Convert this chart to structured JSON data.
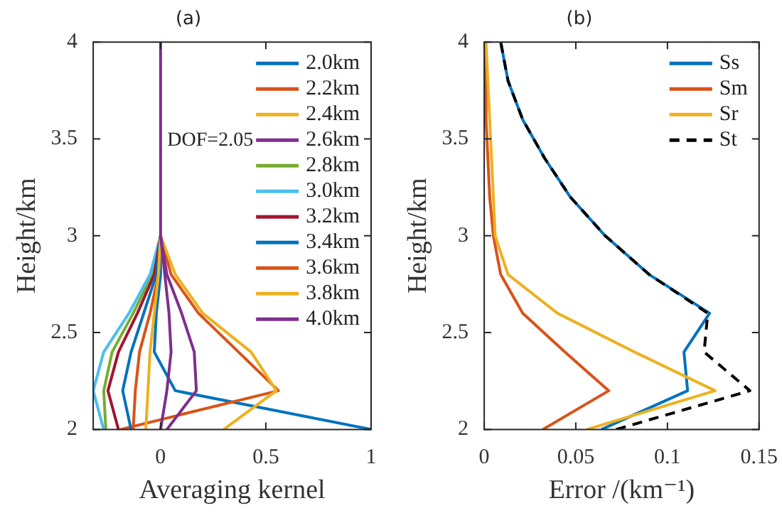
{
  "chart_data": [
    {
      "type": "line",
      "title": "(a)",
      "xlabel": "Averaging kernel",
      "ylabel": "Height/km",
      "xlim": [
        -0.32,
        1
      ],
      "xticks": [
        0,
        0.5,
        1
      ],
      "ylim": [
        2,
        4
      ],
      "yticks": [
        2,
        2.5,
        3,
        3.5,
        4
      ],
      "legend": "top right",
      "annotations": [
        "DOF=2.05"
      ],
      "series": [
        {
          "name": "2.0km",
          "color": "#0072bd",
          "x": [
            1,
            0.07,
            -0.03,
            -0.02,
            0,
            0
          ],
          "values": [
            2,
            2.2,
            2.4,
            2.6,
            2.8,
            3
          ]
        },
        {
          "name": "2.2km",
          "color": "#d95319",
          "x": [
            -0.19,
            0.56,
            0.37,
            0.18,
            0.05,
            0
          ],
          "values": [
            2,
            2.2,
            2.4,
            2.6,
            2.8,
            3
          ]
        },
        {
          "name": "2.4km",
          "color": "#edb120",
          "x": [
            0.3,
            0.55,
            0.43,
            0.2,
            0.07,
            0
          ],
          "values": [
            2,
            2.2,
            2.4,
            2.6,
            2.8,
            3
          ]
        },
        {
          "name": "2.6km",
          "color": "#7e2f8e",
          "x": [
            0.03,
            0.17,
            0.16,
            0.1,
            0.03,
            0
          ],
          "values": [
            2,
            2.2,
            2.4,
            2.6,
            2.8,
            3
          ]
        },
        {
          "name": "2.8km",
          "color": "#77ac30",
          "x": [
            -0.26,
            -0.27,
            -0.23,
            -0.13,
            -0.04,
            0
          ],
          "values": [
            2,
            2.2,
            2.4,
            2.6,
            2.8,
            3
          ]
        },
        {
          "name": "3.0km",
          "color": "#4dbeee",
          "x": [
            -0.27,
            -0.32,
            -0.27,
            -0.15,
            -0.05,
            0
          ],
          "values": [
            2,
            2.2,
            2.4,
            2.6,
            2.8,
            3
          ]
        },
        {
          "name": "3.2km",
          "color": "#a2142f",
          "x": [
            -0.2,
            -0.25,
            -0.2,
            -0.11,
            -0.03,
            0
          ],
          "values": [
            2,
            2.2,
            2.4,
            2.6,
            2.8,
            3
          ]
        },
        {
          "name": "3.4km",
          "color": "#0072bd",
          "x": [
            -0.14,
            -0.18,
            -0.14,
            -0.08,
            -0.02,
            0
          ],
          "values": [
            2,
            2.2,
            2.4,
            2.6,
            2.8,
            3
          ]
        },
        {
          "name": "3.6km",
          "color": "#d95319",
          "x": [
            -0.13,
            -0.12,
            -0.1,
            -0.05,
            -0.01,
            0
          ],
          "values": [
            2,
            2.2,
            2.4,
            2.6,
            2.8,
            3
          ]
        },
        {
          "name": "3.8km",
          "color": "#edb120",
          "x": [
            -0.07,
            -0.06,
            -0.05,
            -0.03,
            -0.01,
            0
          ],
          "values": [
            2,
            2.2,
            2.4,
            2.6,
            2.8,
            3
          ]
        },
        {
          "name": "4.0km",
          "color": "#7e2f8e",
          "x": [
            0,
            0.03,
            0.05,
            0.04,
            0.02,
            0,
            0,
            0,
            0,
            0,
            0
          ],
          "values": [
            2,
            2.2,
            2.4,
            2.6,
            2.8,
            3,
            3.2,
            3.4,
            3.6,
            3.8,
            4
          ]
        }
      ]
    },
    {
      "type": "line",
      "title": "(b)",
      "xlabel": "Error /(km⁻¹)",
      "ylabel": "Height/km",
      "xlim": [
        0,
        0.15
      ],
      "xticks": [
        0,
        0.05,
        0.1,
        0.15
      ],
      "ylim": [
        2,
        4
      ],
      "yticks": [
        2,
        2.5,
        3,
        3.5,
        4
      ],
      "legend": "top right",
      "series": [
        {
          "name": "Ss",
          "color": "#0072bd",
          "x": [
            0.064,
            0.111,
            0.109,
            0.123,
            0.09,
            0.066,
            0.047,
            0.033,
            0.021,
            0.013,
            0.009
          ],
          "values": [
            2,
            2.2,
            2.4,
            2.6,
            2.8,
            3,
            3.2,
            3.4,
            3.6,
            3.8,
            4
          ]
        },
        {
          "name": "Sm",
          "color": "#d95319",
          "x": [
            0.032,
            0.068,
            0.044,
            0.021,
            0.009,
            0.005,
            0.003,
            0.002,
            0.001,
            0.001,
            0
          ],
          "values": [
            2,
            2.2,
            2.4,
            2.6,
            2.8,
            3,
            3.2,
            3.4,
            3.6,
            3.8,
            4
          ]
        },
        {
          "name": "Sr",
          "color": "#edb120",
          "x": [
            0.056,
            0.126,
            0.082,
            0.04,
            0.013,
            0.006,
            0.005,
            0.004,
            0.003,
            0.002,
            0.001
          ],
          "values": [
            2,
            2.2,
            2.4,
            2.6,
            2.8,
            3,
            3.2,
            3.4,
            3.6,
            3.8,
            4
          ]
        },
        {
          "name": "St",
          "color": "#000000",
          "line_style": "dashed",
          "x": [
            0.072,
            0.145,
            0.12,
            0.122,
            0.09,
            0.066,
            0.047,
            0.033,
            0.021,
            0.013,
            0.009
          ],
          "values": [
            2,
            2.2,
            2.4,
            2.6,
            2.8,
            3,
            3.2,
            3.4,
            3.6,
            3.8,
            4
          ]
        }
      ]
    }
  ]
}
